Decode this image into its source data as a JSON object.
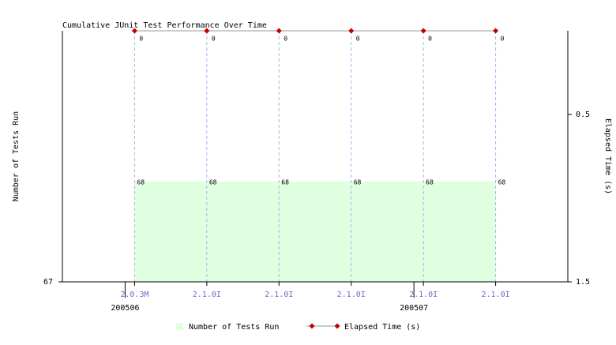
{
  "chart_data": {
    "type": "area-line",
    "title": "Cumulative JUnit Test Performance Over Time",
    "y_label": "Number of Tests Run",
    "y2_label": "Elapsed Time (s)",
    "categories": [
      "2.0.3M",
      "2.1.0I",
      "2.1.0I",
      "2.1.0I",
      "2.1.0I",
      "2.1.0I"
    ],
    "periods": [
      "200506",
      null,
      null,
      null,
      "200507",
      null
    ],
    "ylim": [
      67,
      69.5
    ],
    "yticks": [
      67
    ],
    "y2lim": [
      1.5,
      0
    ],
    "y2ticks": [
      0.5,
      1.5
    ],
    "series": [
      {
        "name": "Number of Tests Run",
        "color": "#e0ffe0",
        "values": [
          68,
          68,
          68,
          68,
          68,
          68
        ]
      },
      {
        "name": "Elapsed Time (s)",
        "color": "#999999",
        "marker_color": "#c00000",
        "axis": "y2",
        "values": [
          0,
          0,
          0,
          0,
          0,
          0
        ]
      }
    ]
  }
}
